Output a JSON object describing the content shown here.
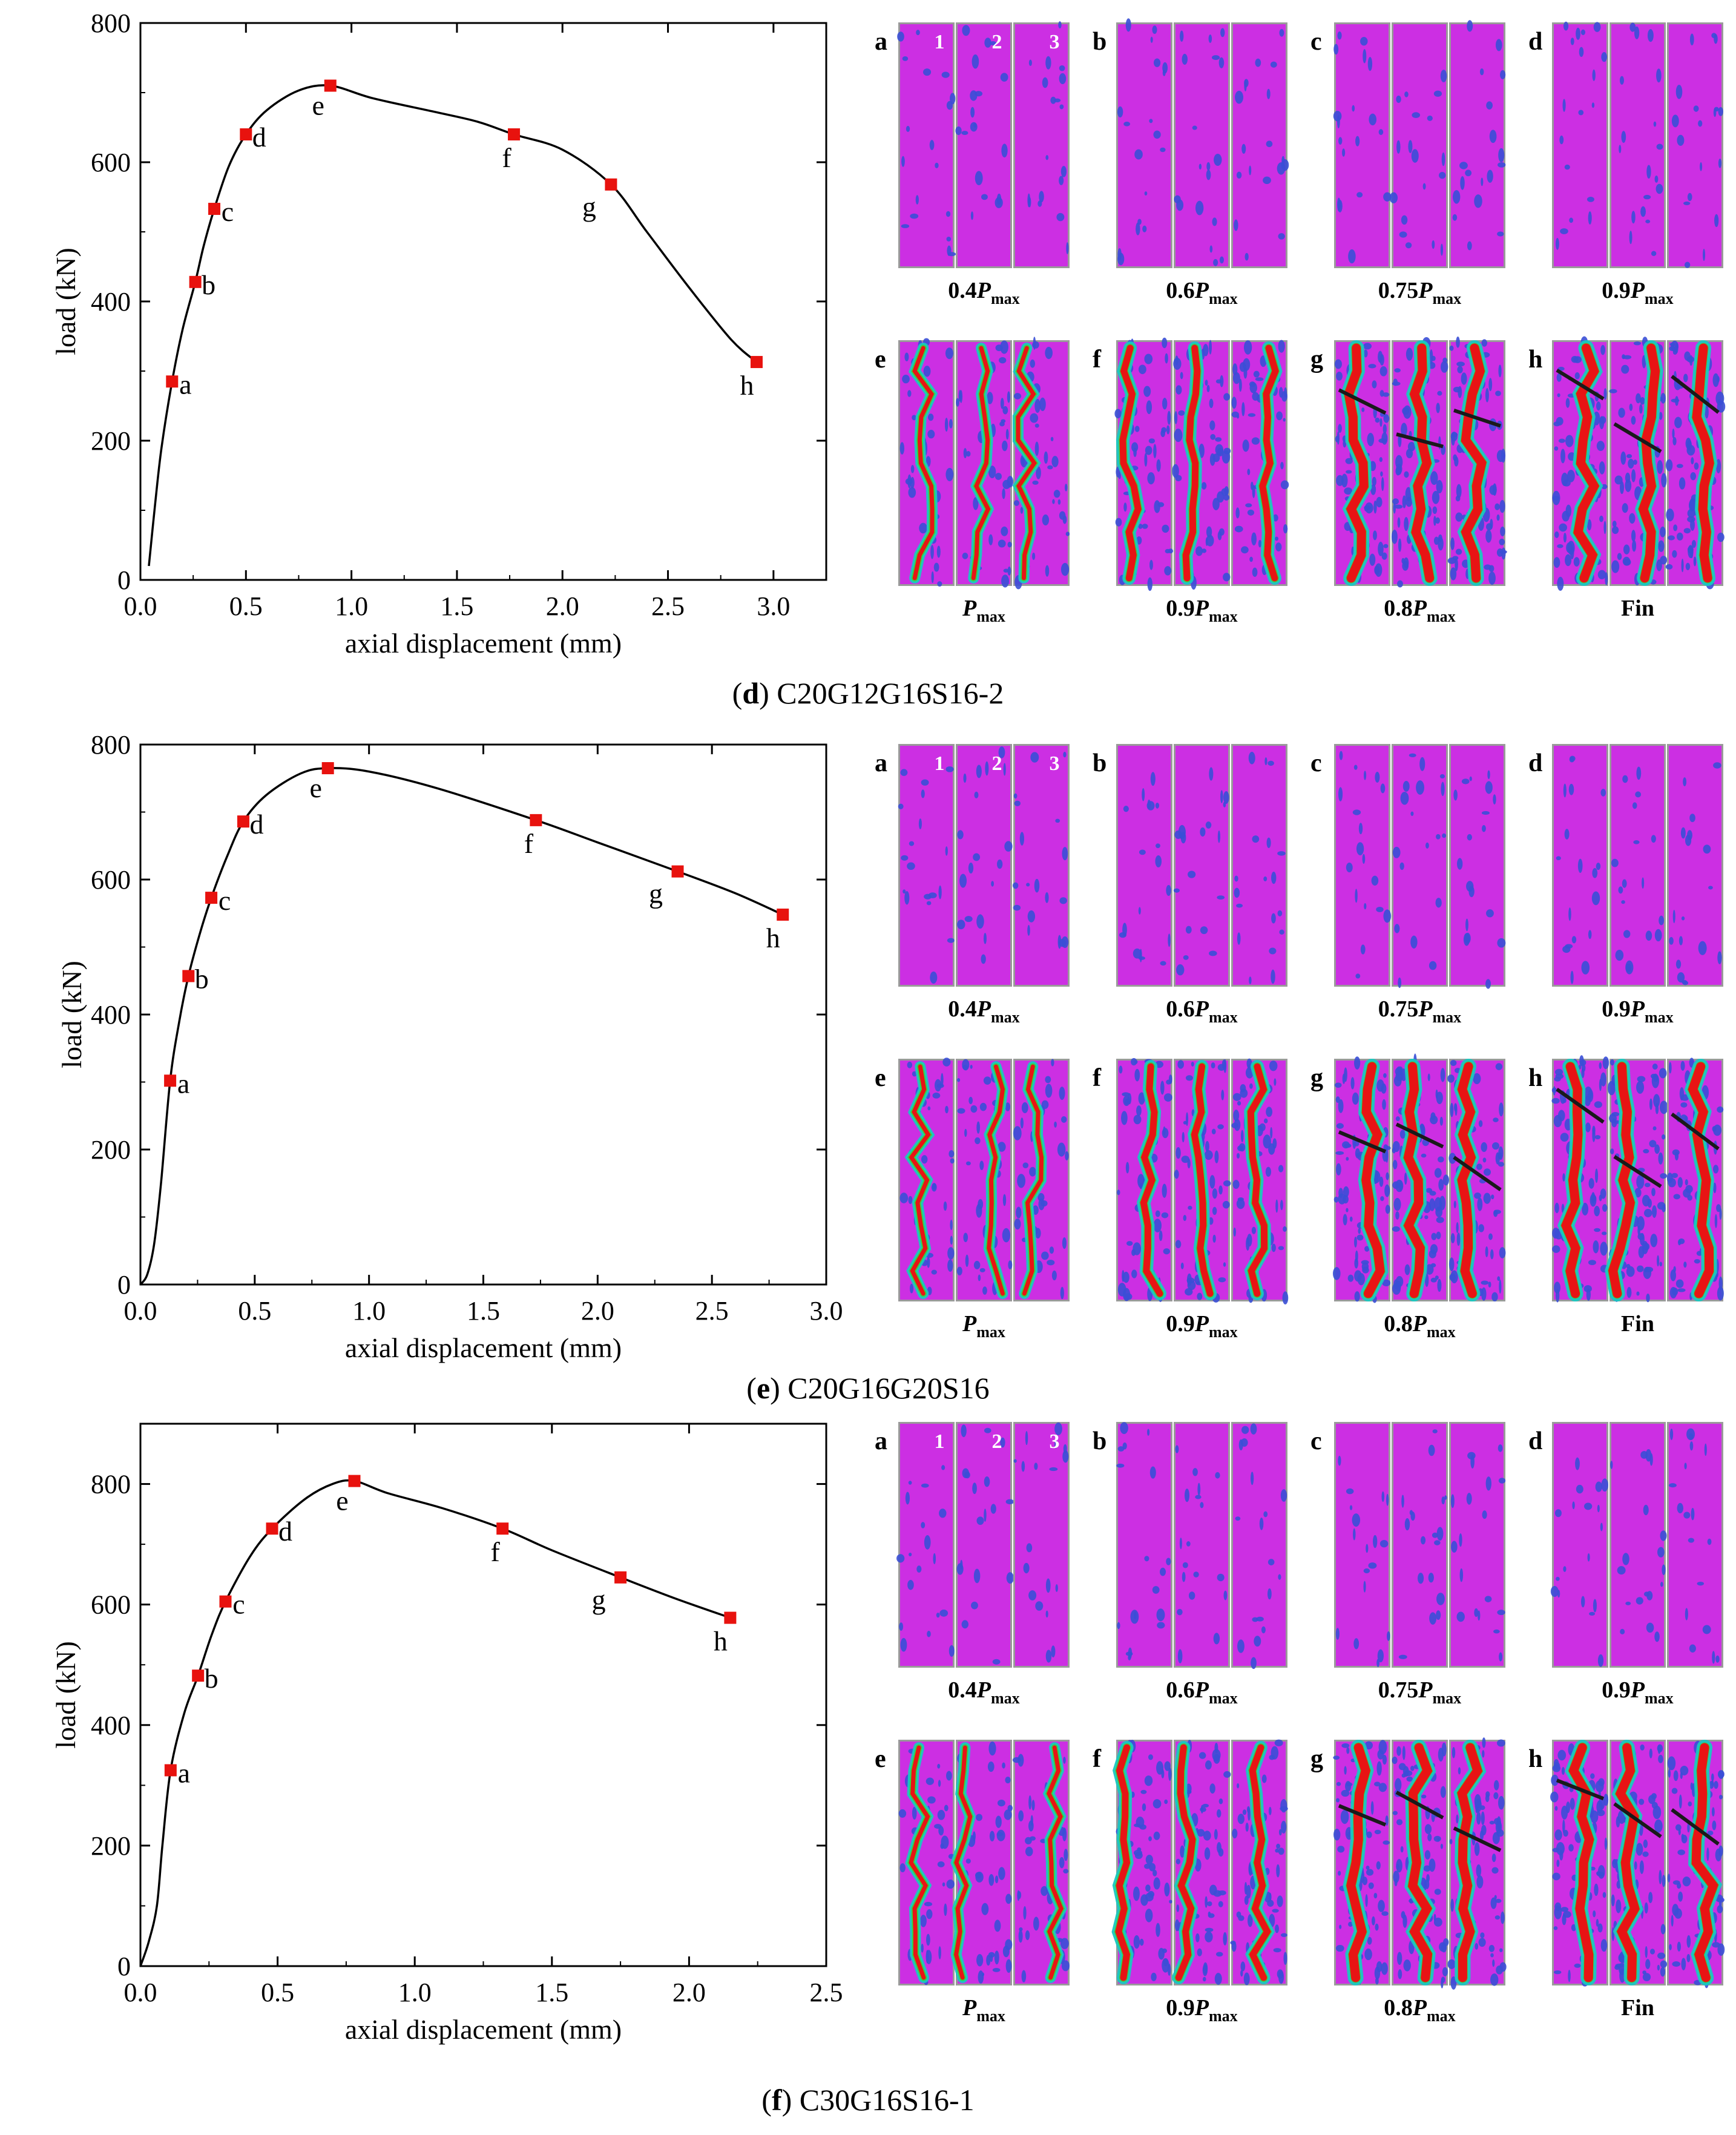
{
  "figure_panels": [
    {
      "label_letter": "d",
      "label_text": "C20G12G16S16-2",
      "specimen_labels": [
        "1",
        "2",
        "3"
      ],
      "chart": {
        "type": "line",
        "xlabel": "axial displacement (mm)",
        "ylabel": "load (kN)",
        "xlim": [
          0,
          3.25
        ],
        "ylim": [
          0,
          800
        ],
        "xticks": [
          0,
          0.5,
          1,
          1.5,
          2,
          2.5,
          3
        ],
        "xtick_labels": [
          "0.0",
          "0.5",
          "1.0",
          "1.5",
          "2.0",
          "2.5",
          "3.0"
        ],
        "yticks": [
          0,
          200,
          400,
          600,
          800
        ],
        "ytick_labels": [
          "0",
          "200",
          "400",
          "600",
          "800"
        ],
        "curve": [
          [
            0.04,
            20
          ],
          [
            0.07,
            110
          ],
          [
            0.1,
            190
          ],
          [
            0.15,
            285
          ],
          [
            0.2,
            360
          ],
          [
            0.26,
            428
          ],
          [
            0.3,
            480
          ],
          [
            0.35,
            533
          ],
          [
            0.42,
            595
          ],
          [
            0.5,
            640
          ],
          [
            0.6,
            675
          ],
          [
            0.75,
            703
          ],
          [
            0.9,
            710
          ],
          [
            1.1,
            692
          ],
          [
            1.4,
            672
          ],
          [
            1.6,
            658
          ],
          [
            1.77,
            640
          ],
          [
            2.0,
            618
          ],
          [
            2.23,
            568
          ],
          [
            2.4,
            500
          ],
          [
            2.6,
            420
          ],
          [
            2.8,
            345
          ],
          [
            2.92,
            313
          ]
        ],
        "points": [
          {
            "label": "a",
            "x": 0.15,
            "y": 285
          },
          {
            "label": "b",
            "x": 0.26,
            "y": 428
          },
          {
            "label": "c",
            "x": 0.35,
            "y": 533
          },
          {
            "label": "d",
            "x": 0.5,
            "y": 640
          },
          {
            "label": "e",
            "x": 0.9,
            "y": 710
          },
          {
            "label": "f",
            "x": 1.77,
            "y": 640
          },
          {
            "label": "g",
            "x": 2.23,
            "y": 568
          },
          {
            "label": "h",
            "x": 2.92,
            "y": 313
          }
        ]
      },
      "stages": [
        {
          "letter": "a",
          "coef": "0.4",
          "p": "P",
          "sub": "max"
        },
        {
          "letter": "b",
          "coef": "0.6",
          "p": "P",
          "sub": "max"
        },
        {
          "letter": "c",
          "coef": "0.75",
          "p": "P",
          "sub": "max"
        },
        {
          "letter": "d",
          "coef": "0.9",
          "p": "P",
          "sub": "max"
        },
        {
          "letter": "e",
          "coef": "",
          "p": "P",
          "sub": "max"
        },
        {
          "letter": "f",
          "coef": "0.9",
          "p": "P",
          "sub": "max"
        },
        {
          "letter": "g",
          "coef": "0.8",
          "p": "P",
          "sub": "max"
        },
        {
          "letter": "h",
          "coef": "Fin",
          "p": "",
          "sub": ""
        }
      ]
    },
    {
      "label_letter": "e",
      "label_text": "C20G16G20S16",
      "specimen_labels": [
        "1",
        "2",
        "3"
      ],
      "chart": {
        "type": "line",
        "xlabel": "axial displacement (mm)",
        "ylabel": "load (kN)",
        "xlim": [
          0,
          3.0
        ],
        "ylim": [
          0,
          800
        ],
        "xticks": [
          0,
          0.5,
          1,
          1.5,
          2,
          2.5,
          3
        ],
        "xtick_labels": [
          "0.0",
          "0.5",
          "1.0",
          "1.5",
          "2.0",
          "2.5",
          "3.0"
        ],
        "yticks": [
          0,
          200,
          400,
          600,
          800
        ],
        "ytick_labels": [
          "0",
          "200",
          "400",
          "600",
          "800"
        ],
        "curve": [
          [
            0.0,
            0
          ],
          [
            0.03,
            15
          ],
          [
            0.06,
            60
          ],
          [
            0.09,
            150
          ],
          [
            0.13,
            302
          ],
          [
            0.17,
            390
          ],
          [
            0.21,
            457
          ],
          [
            0.26,
            520
          ],
          [
            0.31,
            573
          ],
          [
            0.38,
            635
          ],
          [
            0.45,
            686
          ],
          [
            0.55,
            725
          ],
          [
            0.7,
            757
          ],
          [
            0.82,
            765
          ],
          [
            1.0,
            760
          ],
          [
            1.3,
            735
          ],
          [
            1.73,
            688
          ],
          [
            2.0,
            655
          ],
          [
            2.35,
            612
          ],
          [
            2.6,
            580
          ],
          [
            2.81,
            548
          ]
        ],
        "points": [
          {
            "label": "a",
            "x": 0.13,
            "y": 302
          },
          {
            "label": "b",
            "x": 0.21,
            "y": 457
          },
          {
            "label": "c",
            "x": 0.31,
            "y": 573
          },
          {
            "label": "d",
            "x": 0.45,
            "y": 686
          },
          {
            "label": "e",
            "x": 0.82,
            "y": 765
          },
          {
            "label": "f",
            "x": 1.73,
            "y": 688
          },
          {
            "label": "g",
            "x": 2.35,
            "y": 612
          },
          {
            "label": "h",
            "x": 2.81,
            "y": 548
          }
        ]
      },
      "stages": [
        {
          "letter": "a",
          "coef": "0.4",
          "p": "P",
          "sub": "max"
        },
        {
          "letter": "b",
          "coef": "0.6",
          "p": "P",
          "sub": "max"
        },
        {
          "letter": "c",
          "coef": "0.75",
          "p": "P",
          "sub": "max"
        },
        {
          "letter": "d",
          "coef": "0.9",
          "p": "P",
          "sub": "max"
        },
        {
          "letter": "e",
          "coef": "",
          "p": "P",
          "sub": "max"
        },
        {
          "letter": "f",
          "coef": "0.9",
          "p": "P",
          "sub": "max"
        },
        {
          "letter": "g",
          "coef": "0.8",
          "p": "P",
          "sub": "max"
        },
        {
          "letter": "h",
          "coef": "Fin",
          "p": "",
          "sub": ""
        }
      ]
    },
    {
      "label_letter": "f",
      "label_text": "C30G16S16-1",
      "specimen_labels": [
        "1",
        "2",
        "3"
      ],
      "chart": {
        "type": "line",
        "xlabel": "axial displacement (mm)",
        "ylabel": "load (kN)",
        "xlim": [
          0,
          2.5
        ],
        "ylim": [
          0,
          900
        ],
        "xticks": [
          0,
          0.5,
          1,
          1.5,
          2,
          2.5
        ],
        "xtick_labels": [
          "0.0",
          "0.5",
          "1.0",
          "1.5",
          "2.0",
          "2.5"
        ],
        "yticks": [
          0,
          200,
          400,
          600,
          800
        ],
        "ytick_labels": [
          "0",
          "200",
          "400",
          "600",
          "800"
        ],
        "curve": [
          [
            0.0,
            0
          ],
          [
            0.03,
            40
          ],
          [
            0.06,
            100
          ],
          [
            0.08,
            200
          ],
          [
            0.11,
            325
          ],
          [
            0.16,
            420
          ],
          [
            0.21,
            482
          ],
          [
            0.26,
            550
          ],
          [
            0.31,
            605
          ],
          [
            0.4,
            680
          ],
          [
            0.48,
            726
          ],
          [
            0.6,
            775
          ],
          [
            0.7,
            800
          ],
          [
            0.78,
            805
          ],
          [
            0.9,
            785
          ],
          [
            1.1,
            760
          ],
          [
            1.32,
            726
          ],
          [
            1.5,
            690
          ],
          [
            1.75,
            645
          ],
          [
            1.95,
            610
          ],
          [
            2.15,
            578
          ]
        ],
        "points": [
          {
            "label": "a",
            "x": 0.11,
            "y": 325
          },
          {
            "label": "b",
            "x": 0.21,
            "y": 482
          },
          {
            "label": "c",
            "x": 0.31,
            "y": 605
          },
          {
            "label": "d",
            "x": 0.48,
            "y": 726
          },
          {
            "label": "e",
            "x": 0.78,
            "y": 805
          },
          {
            "label": "f",
            "x": 1.32,
            "y": 726
          },
          {
            "label": "g",
            "x": 1.75,
            "y": 645
          },
          {
            "label": "h",
            "x": 2.15,
            "y": 578
          }
        ]
      },
      "stages": [
        {
          "letter": "a",
          "coef": "0.4",
          "p": "P",
          "sub": "max"
        },
        {
          "letter": "b",
          "coef": "0.6",
          "p": "P",
          "sub": "max"
        },
        {
          "letter": "c",
          "coef": "0.75",
          "p": "P",
          "sub": "max"
        },
        {
          "letter": "d",
          "coef": "0.9",
          "p": "P",
          "sub": "max"
        },
        {
          "letter": "e",
          "coef": "",
          "p": "P",
          "sub": "max"
        },
        {
          "letter": "f",
          "coef": "0.9",
          "p": "P",
          "sub": "max"
        },
        {
          "letter": "g",
          "coef": "0.8",
          "p": "P",
          "sub": "max"
        },
        {
          "letter": "h",
          "coef": "Fin",
          "p": "",
          "sub": ""
        }
      ]
    }
  ],
  "colors": {
    "curve": "#000000",
    "marker": "#e8120e",
    "strain_base": "#cc2fe3",
    "strain_low": "#3a4fd6",
    "strain_mid": "#18c9c0",
    "strain_midhigh": "#34d840",
    "strain_high": "#e81414",
    "crack": "#1a1a1a",
    "gray_bg": "#8c8c8c"
  }
}
